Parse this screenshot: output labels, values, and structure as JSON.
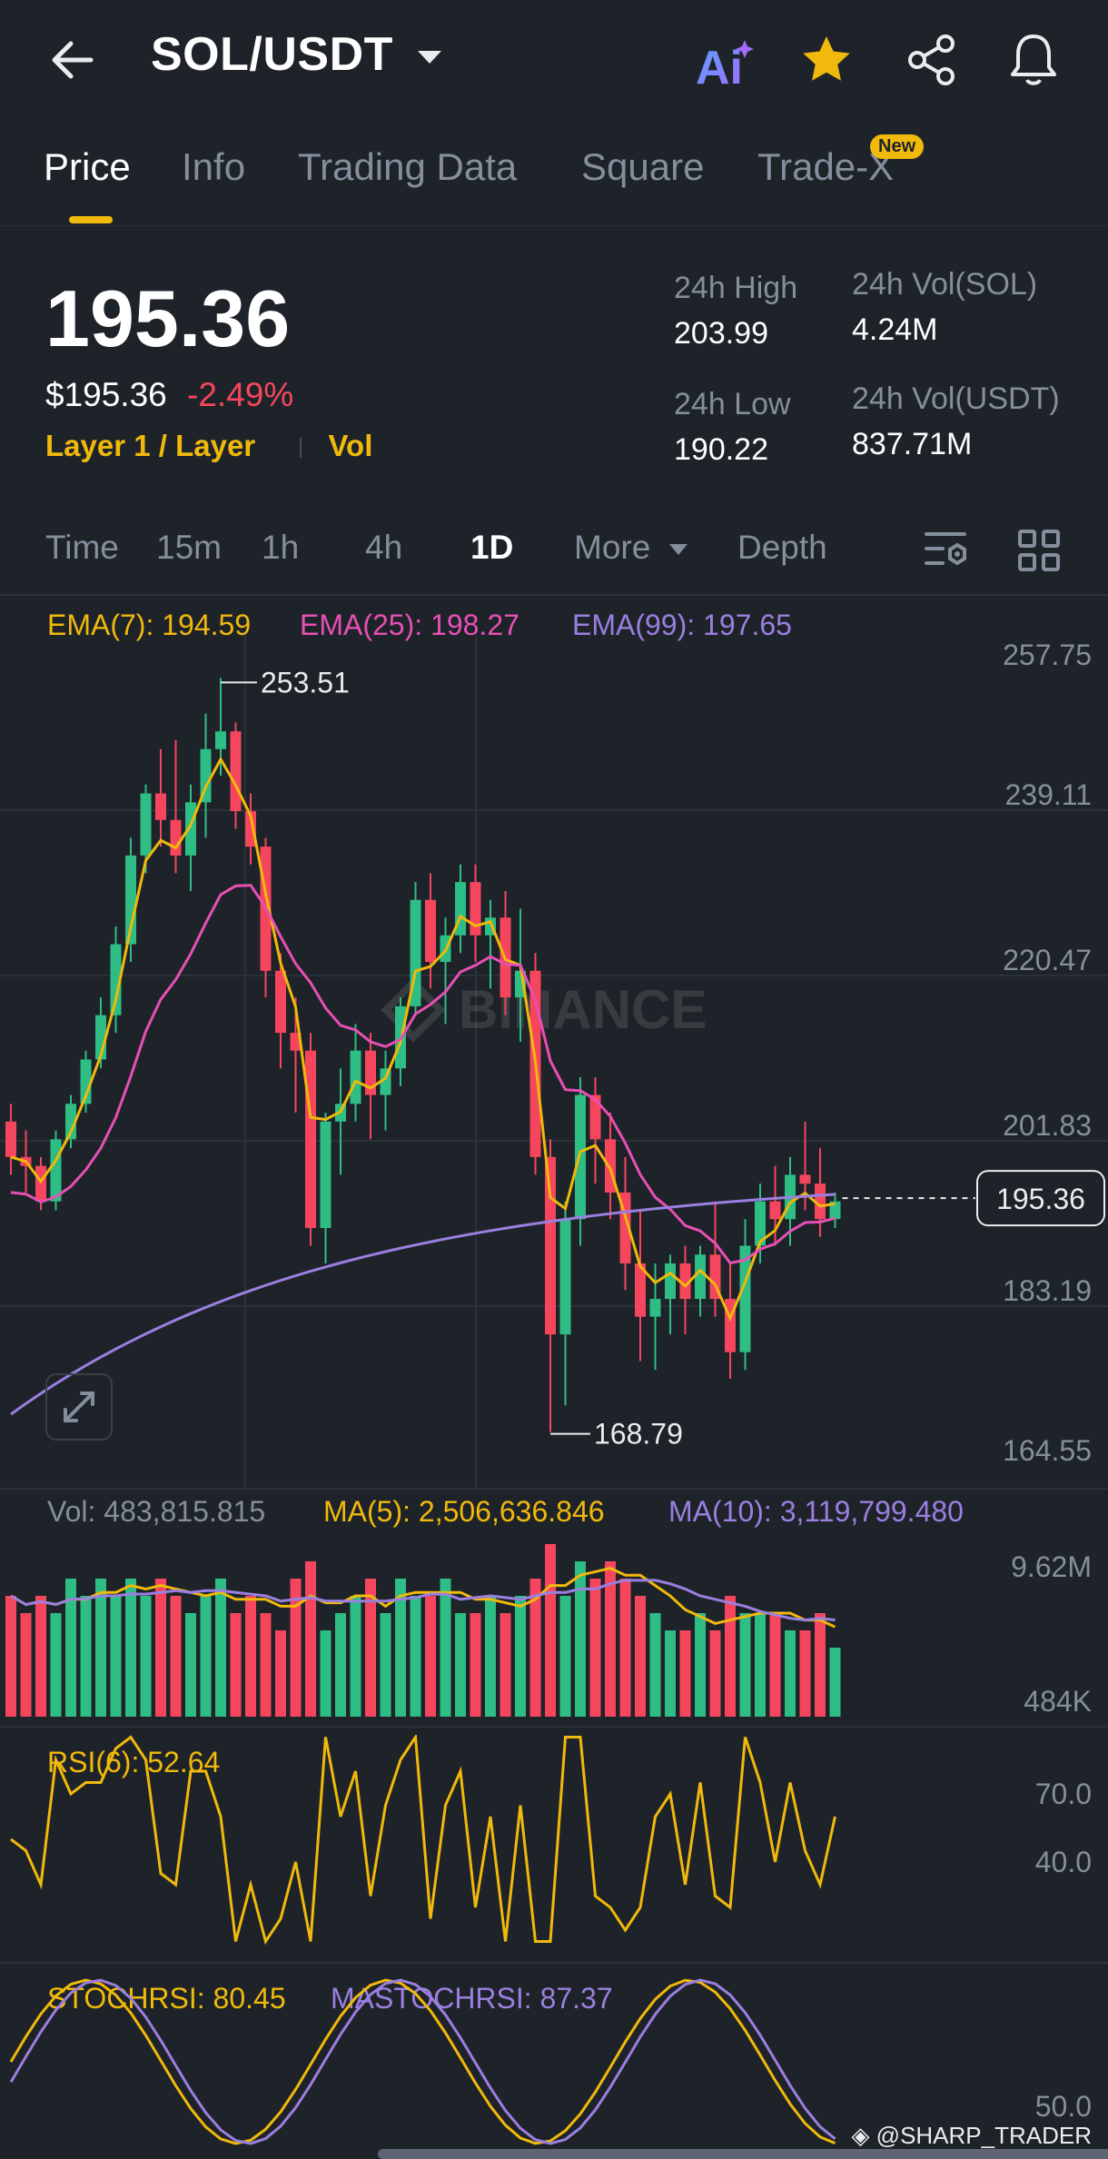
{
  "header": {
    "pair": "SOL/USDT",
    "ai_label": "Ai"
  },
  "tabs": [
    {
      "label": "Price",
      "active": true
    },
    {
      "label": "Info"
    },
    {
      "label": "Trading Data"
    },
    {
      "label": "Square"
    },
    {
      "label": "Trade-X",
      "badge": "New"
    }
  ],
  "ticker": {
    "last_price": "195.36",
    "usd_price": "$195.36",
    "change_pct": "-2.49%",
    "tags": [
      "Layer 1 / Layer",
      "Vol"
    ],
    "high_label": "24h High",
    "high": "203.99",
    "low_label": "24h Low",
    "low": "190.22",
    "vol_sol_label": "24h Vol(SOL)",
    "vol_sol": "4.24M",
    "vol_usdt_label": "24h Vol(USDT)",
    "vol_usdt": "837.71M"
  },
  "toolbar": {
    "items": [
      "Time",
      "15m",
      "1h",
      "4h",
      "1D",
      "More",
      "Depth"
    ],
    "active": "1D"
  },
  "indicators": {
    "ema7": "EMA(7): 194.59",
    "ema25": "EMA(25): 198.27",
    "ema99": "EMA(99): 197.65",
    "vol": "Vol: 483,815.815",
    "ma5": "MA(5): 2,506,636.846",
    "ma10": "MA(10): 3,119,799.480",
    "rsi": "RSI(6): 52.64",
    "stochrsi": "STOCHRSI: 80.45",
    "mastochrsi": "MASTOCHRSI: 87.37"
  },
  "chart_data": {
    "type": "candlestick",
    "price_axis": [
      "257.75",
      "239.11",
      "220.47",
      "201.83",
      "183.19",
      "164.55"
    ],
    "ylim": [
      164.55,
      257.75
    ],
    "high_marker": "253.51",
    "low_marker": "168.79",
    "current_price_label": "195.36",
    "watermark": "BINANCE",
    "candles": [
      [
        204,
        206,
        198,
        200
      ],
      [
        200,
        203,
        196,
        199
      ],
      [
        199,
        200,
        194,
        195
      ],
      [
        195,
        203,
        194,
        202
      ],
      [
        202,
        207,
        201,
        206
      ],
      [
        206,
        212,
        205,
        211
      ],
      [
        211,
        218,
        210,
        216
      ],
      [
        216,
        226,
        214,
        224
      ],
      [
        224,
        236,
        222,
        234
      ],
      [
        234,
        242,
        232,
        241
      ],
      [
        241,
        246,
        235,
        238
      ],
      [
        238,
        247,
        232,
        234
      ],
      [
        234,
        242,
        230,
        240
      ],
      [
        240,
        250,
        236,
        246
      ],
      [
        246,
        254,
        243,
        248
      ],
      [
        248,
        249,
        237,
        239
      ],
      [
        239,
        241,
        233,
        235
      ],
      [
        235,
        236,
        218,
        221
      ],
      [
        221,
        223,
        210,
        214
      ],
      [
        214,
        218,
        205,
        212
      ],
      [
        212,
        214,
        190,
        192
      ],
      [
        192,
        205,
        188,
        204
      ],
      [
        204,
        210,
        198,
        206
      ],
      [
        206,
        215,
        204,
        212
      ],
      [
        212,
        214,
        202,
        207
      ],
      [
        207,
        212,
        203,
        210
      ],
      [
        210,
        218,
        208,
        217
      ],
      [
        217,
        231,
        216,
        229
      ],
      [
        229,
        232,
        219,
        222
      ],
      [
        222,
        227,
        215,
        225
      ],
      [
        225,
        233,
        223,
        231
      ],
      [
        231,
        233,
        222,
        225
      ],
      [
        225,
        229,
        219,
        227
      ],
      [
        227,
        230,
        216,
        218
      ],
      [
        218,
        228,
        213,
        221
      ],
      [
        221,
        223,
        198,
        200
      ],
      [
        200,
        202,
        169,
        180
      ],
      [
        180,
        195,
        172,
        193
      ],
      [
        193,
        209,
        190,
        207
      ],
      [
        207,
        209,
        197,
        202
      ],
      [
        202,
        205,
        193,
        196
      ],
      [
        196,
        200,
        185,
        188
      ],
      [
        188,
        194,
        177,
        182
      ],
      [
        182,
        188,
        176,
        184
      ],
      [
        184,
        189,
        180,
        188
      ],
      [
        188,
        190,
        180,
        184
      ],
      [
        184,
        190,
        182,
        189
      ],
      [
        189,
        195,
        182,
        184
      ],
      [
        184,
        188,
        175,
        178
      ],
      [
        178,
        193,
        176,
        190
      ],
      [
        190,
        197,
        188,
        195
      ],
      [
        195,
        199,
        190,
        193
      ],
      [
        193,
        200,
        190,
        198
      ],
      [
        198,
        204,
        194,
        197
      ],
      [
        197,
        201,
        191,
        193
      ],
      [
        193,
        196,
        192,
        195
      ]
    ],
    "volume_axis": [
      "9.62M",
      "484K"
    ],
    "volume": [
      7,
      6,
      7,
      6,
      8,
      7,
      8,
      7,
      8,
      7,
      8,
      7,
      6,
      7,
      8,
      6,
      7,
      6,
      5,
      8,
      9,
      5,
      6,
      7,
      8,
      6,
      8,
      7,
      7,
      8,
      6,
      6,
      7,
      6,
      7,
      8,
      10,
      7,
      9,
      8,
      9,
      8,
      7,
      6,
      5,
      5,
      6,
      5,
      7,
      6,
      6,
      6,
      5,
      5,
      6,
      4
    ],
    "rsi_axis": [
      "70.0",
      "40.0"
    ],
    "stoch_axis": [
      "50.0"
    ]
  },
  "footer": {
    "watermark": "@SHARP_TRADER"
  },
  "colors": {
    "background": "#1e2329",
    "up": "#2ebd85",
    "down": "#f6465d",
    "accent": "#f0b90b",
    "ema7": "#f0b90b",
    "ema25": "#e84fb5",
    "ema99": "#9b7fe0"
  },
  "icons": [
    "back-arrow-icon",
    "dropdown-caret-icon",
    "ai-icon",
    "star-icon",
    "share-icon",
    "bell-icon",
    "chart-settings-icon",
    "grid-layout-icon",
    "expand-icon",
    "binance-logo-icon"
  ]
}
